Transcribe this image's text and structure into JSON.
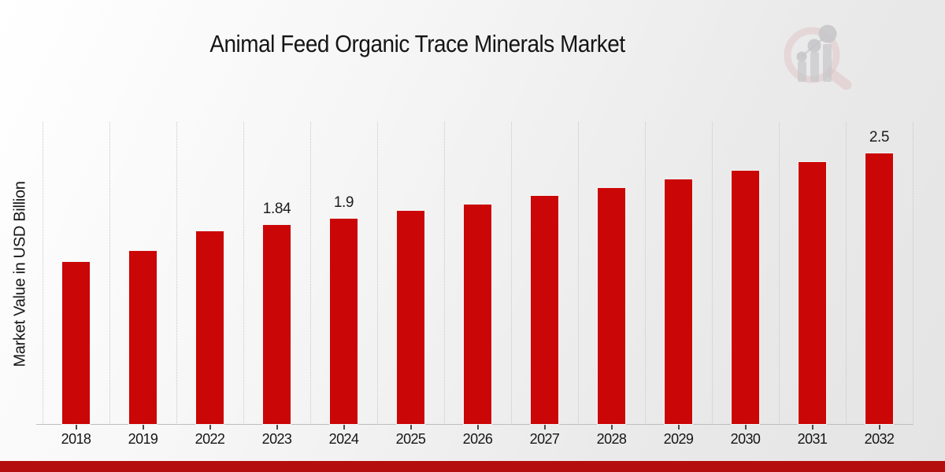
{
  "header": {
    "title": "Animal Feed Organic Trace Minerals Market"
  },
  "chart_data": {
    "type": "bar",
    "title": "Animal Feed Organic Trace Minerals Market",
    "xlabel": "",
    "ylabel": "Market Value in USD Billion",
    "categories": [
      "2018",
      "2019",
      "2022",
      "2023",
      "2024",
      "2025",
      "2026",
      "2027",
      "2028",
      "2029",
      "2030",
      "2031",
      "2032"
    ],
    "values": [
      1.5,
      1.6,
      1.78,
      1.84,
      1.9,
      1.97,
      2.03,
      2.11,
      2.18,
      2.26,
      2.34,
      2.42,
      2.5
    ],
    "data_labels": [
      "",
      "",
      "",
      "1.84",
      "1.9",
      "",
      "",
      "",
      "",
      "",
      "",
      "",
      "2.5"
    ],
    "ylim": [
      0,
      2.78
    ],
    "grid": "vertical-dotted",
    "legend": "none"
  },
  "colors": {
    "bar": "#cb0606",
    "bar_edge": "#f3f3f3",
    "grid": "#c7c7c7",
    "axis_line": "#bdbdbd",
    "tick": "#4a4a4a",
    "text": "#151515",
    "footer_band": "#b50e0e",
    "logo_ring": "#dfc3c3",
    "logo_gray": "#c8c8cb"
  },
  "icons": {
    "logo": "magnifier-bar-chart-logo"
  }
}
